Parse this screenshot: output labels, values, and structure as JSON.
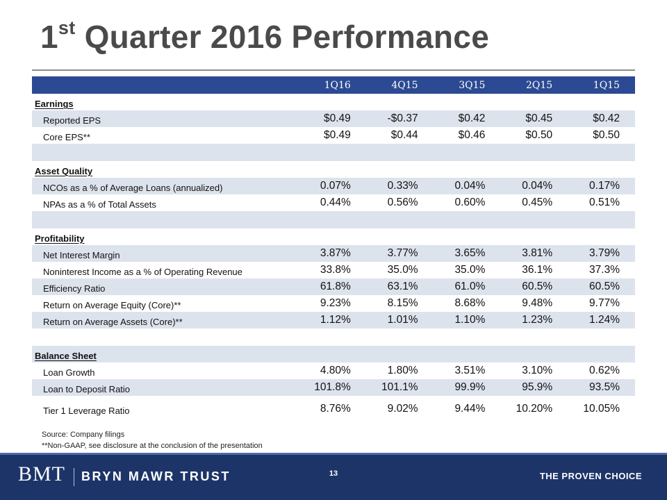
{
  "slide": {
    "title_prefix": "1",
    "title_sup": "st",
    "title_rest": " Quarter 2016 Performance"
  },
  "table": {
    "columns": [
      "1Q16",
      "4Q15",
      "3Q15",
      "2Q15",
      "1Q15"
    ],
    "sections": {
      "earnings": "Earnings",
      "asset_quality": "Asset Quality",
      "profitability": "Profitability",
      "balance_sheet": "Balance Sheet"
    },
    "rows": {
      "reported_eps": {
        "label": "Reported EPS",
        "values": [
          "$0.49",
          "-$0.37",
          "$0.42",
          "$0.45",
          "$0.42"
        ]
      },
      "core_eps": {
        "label": "Core EPS**",
        "values": [
          "$0.49",
          "$0.44",
          "$0.46",
          "$0.50",
          "$0.50"
        ]
      },
      "ncos": {
        "label": "NCOs as a % of Average Loans (annualized)",
        "values": [
          "0.07%",
          "0.33%",
          "0.04%",
          "0.04%",
          "0.17%"
        ]
      },
      "npas": {
        "label": "NPAs as a % of Total Assets",
        "values": [
          "0.44%",
          "0.56%",
          "0.60%",
          "0.45%",
          "0.51%"
        ]
      },
      "nim": {
        "label": "Net Interest Margin",
        "values": [
          "3.87%",
          "3.77%",
          "3.65%",
          "3.81%",
          "3.79%"
        ]
      },
      "nonint": {
        "label": "Noninterest Income as a % of Operating Revenue",
        "values": [
          "33.8%",
          "35.0%",
          "35.0%",
          "36.1%",
          "37.3%"
        ]
      },
      "efficiency": {
        "label": "Efficiency Ratio",
        "values": [
          "61.8%",
          "63.1%",
          "61.0%",
          "60.5%",
          "60.5%"
        ]
      },
      "roe": {
        "label": "Return on Average Equity (Core)**",
        "values": [
          "9.23%",
          "8.15%",
          "8.68%",
          "9.48%",
          "9.77%"
        ]
      },
      "roa": {
        "label": "Return on Average Assets (Core)**",
        "values": [
          "1.12%",
          "1.01%",
          "1.10%",
          "1.23%",
          "1.24%"
        ]
      },
      "loan_growth": {
        "label": "Loan Growth",
        "values": [
          "4.80%",
          "1.80%",
          "3.51%",
          "3.10%",
          "0.62%"
        ]
      },
      "ltd": {
        "label": "Loan to Deposit Ratio",
        "values": [
          "101.8%",
          "101.1%",
          "99.9%",
          "95.9%",
          "93.5%"
        ]
      },
      "tier1": {
        "label": "Tier 1 Leverage Ratio",
        "values": [
          "8.76%",
          "9.02%",
          "9.44%",
          "10.20%",
          "10.05%"
        ]
      }
    }
  },
  "notes": {
    "source": "Source: Company filings",
    "nongaap": "**Non-GAAP, see disclosure at the conclusion of the presentation"
  },
  "footer": {
    "logo_mark": "BMT",
    "logo_name": "BRYN MAWR TRUST",
    "page_number": "13",
    "tagline": "THE PROVEN CHOICE"
  },
  "colors": {
    "header_band": "#2c4a93",
    "row_shade": "#dde3ec",
    "footer_band": "#1d3468",
    "title_text": "#4a4a4a"
  }
}
